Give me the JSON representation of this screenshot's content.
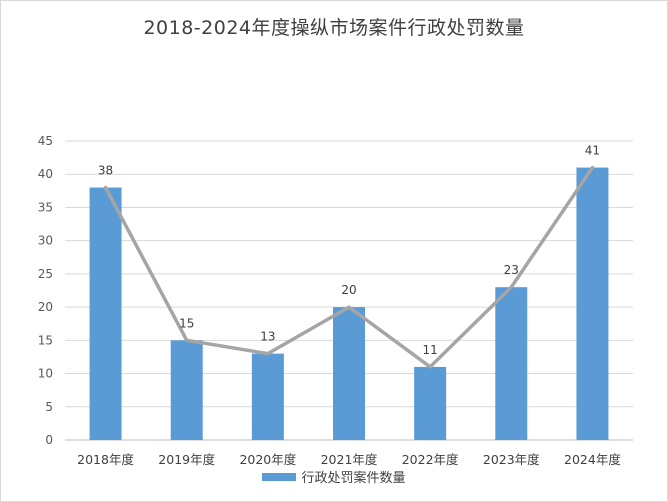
{
  "chart_data": {
    "type": "bar",
    "title": "2018-2024年度操纵市场案件行政处罚数量",
    "categories": [
      "2018年度",
      "2019年度",
      "2020年度",
      "2021年度",
      "2022年度",
      "2023年度",
      "2024年度"
    ],
    "series": [
      {
        "name": "行政处罚案件数量",
        "values": [
          38,
          15,
          13,
          20,
          11,
          23,
          41
        ],
        "render": "bar",
        "color": "#5b9bd5"
      },
      {
        "values": [
          38,
          15,
          13,
          20,
          11,
          23,
          41
        ],
        "render": "line",
        "color": "#a5a5a5"
      }
    ],
    "ylim": [
      0,
      45
    ],
    "yticks": [
      0,
      5,
      10,
      15,
      20,
      25,
      30,
      35,
      40,
      45
    ],
    "grid": true,
    "data_labels": true,
    "legend": "bottom"
  }
}
